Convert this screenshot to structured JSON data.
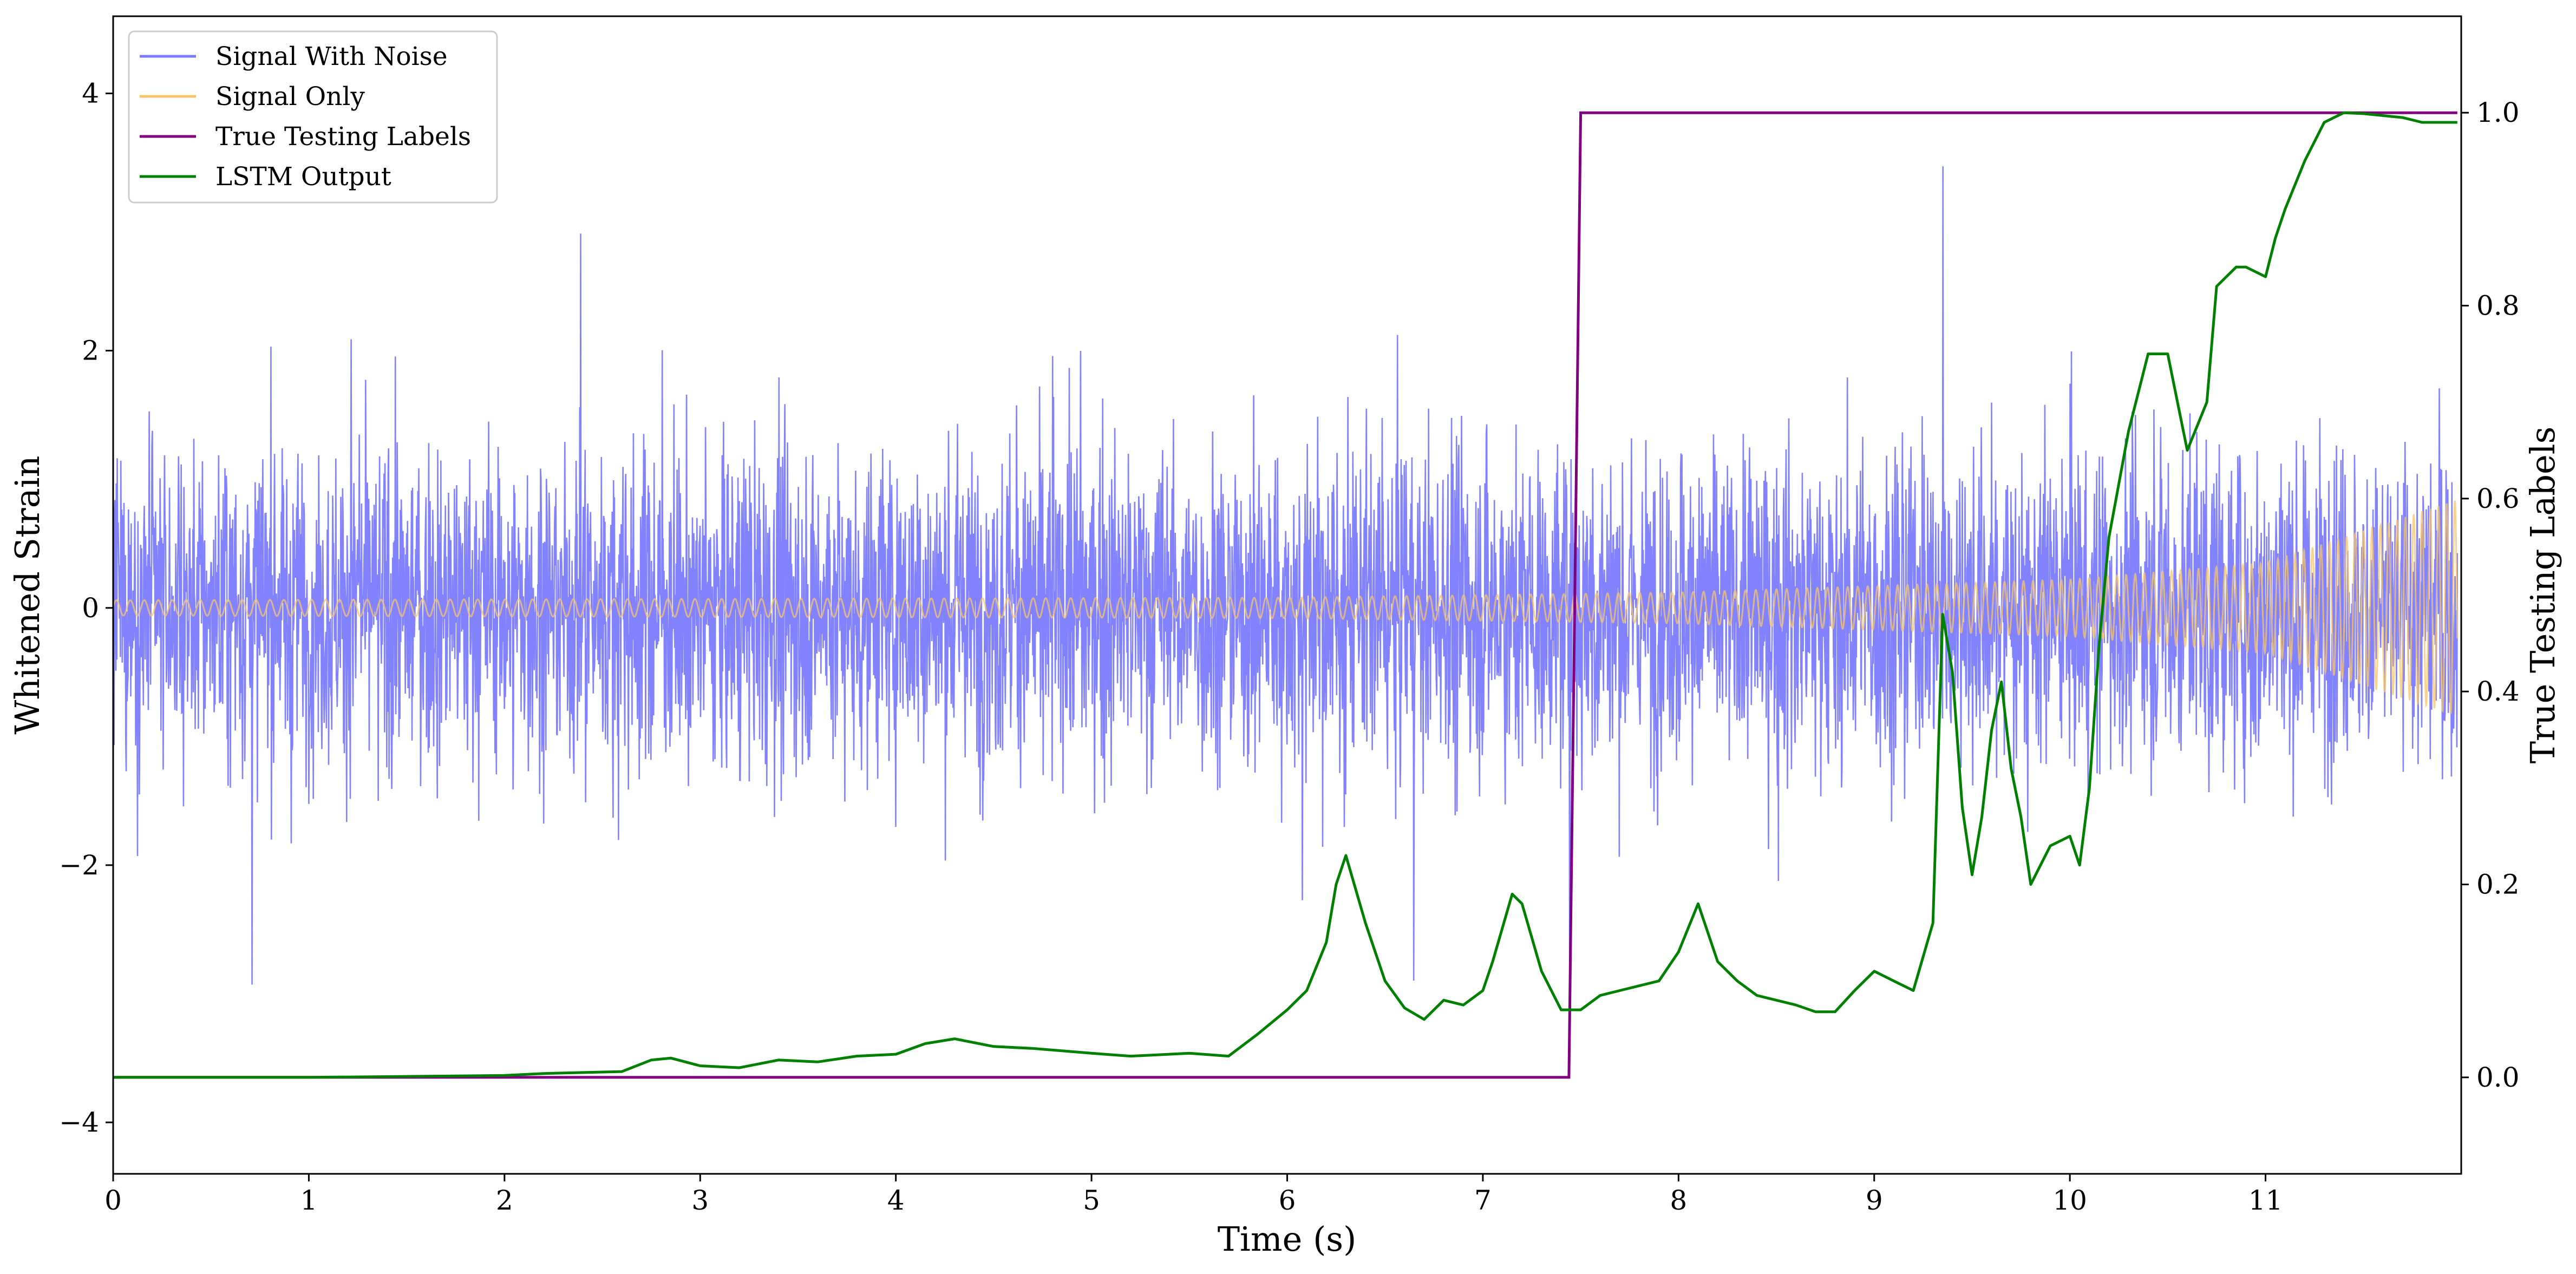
{
  "chart_data": {
    "type": "line",
    "xlabel": "Time (s)",
    "ylabel": "Whitened Strain",
    "ylabel_right": "True Testing Labels",
    "xlim": [
      0,
      12
    ],
    "ylim": [
      -4.4,
      4.6
    ],
    "ylim_right": [
      -0.1,
      1.1
    ],
    "x_ticks": [
      "0",
      "1",
      "2",
      "3",
      "4",
      "5",
      "6",
      "7",
      "8",
      "9",
      "10",
      "11"
    ],
    "y_ticks_left": [
      "−4",
      "−2",
      "0",
      "2",
      "4"
    ],
    "y_ticks_right": [
      "0.0",
      "0.2",
      "0.4",
      "0.6",
      "0.8",
      "1.0"
    ],
    "grid": false,
    "legend_position": "upper-left",
    "legend": [
      "Signal With Noise",
      "Signal Only",
      "True Testing Labels",
      "LSTM Output"
    ],
    "series": [
      {
        "name": "Signal With Noise",
        "axis": "left",
        "color": "#7b7bff",
        "description_values": "dense noise, approx. |y| ≤ 1.8 typical, spikes to ±3.5"
      },
      {
        "name": "Signal Only",
        "axis": "left",
        "color": "#f6c46a",
        "envelope": {
          "x": [
            0,
            6,
            8,
            10,
            11,
            12
          ],
          "amplitude": [
            0.06,
            0.08,
            0.12,
            0.22,
            0.35,
            0.85
          ]
        }
      },
      {
        "name": "True Testing Labels",
        "axis": "right",
        "color": "#800080",
        "x": [
          0,
          7.44,
          7.5,
          11.98
        ],
        "y": [
          0.0,
          0.0,
          1.0,
          1.0
        ]
      },
      {
        "name": "LSTM Output",
        "axis": "right",
        "color": "#008000",
        "x": [
          0,
          1.0,
          1.5,
          2.0,
          2.2,
          2.6,
          2.75,
          2.85,
          3.0,
          3.2,
          3.4,
          3.6,
          3.8,
          4.0,
          4.15,
          4.3,
          4.5,
          4.7,
          5.0,
          5.2,
          5.5,
          5.7,
          5.85,
          6.0,
          6.1,
          6.2,
          6.25,
          6.3,
          6.4,
          6.5,
          6.6,
          6.7,
          6.8,
          6.9,
          7.0,
          7.05,
          7.15,
          7.2,
          7.3,
          7.4,
          7.5,
          7.6,
          7.7,
          7.8,
          7.9,
          8.0,
          8.1,
          8.2,
          8.3,
          8.4,
          8.5,
          8.6,
          8.7,
          8.8,
          8.9,
          9.0,
          9.1,
          9.2,
          9.3,
          9.35,
          9.4,
          9.45,
          9.5,
          9.55,
          9.6,
          9.65,
          9.7,
          9.75,
          9.8,
          9.9,
          10.0,
          10.05,
          10.1,
          10.15,
          10.2,
          10.3,
          10.4,
          10.5,
          10.55,
          10.6,
          10.7,
          10.75,
          10.85,
          10.9,
          11.0,
          11.05,
          11.1,
          11.2,
          11.3,
          11.4,
          11.5,
          11.7,
          11.8,
          11.9,
          11.98
        ],
        "y": [
          0.0,
          0.0,
          0.001,
          0.002,
          0.004,
          0.006,
          0.018,
          0.02,
          0.012,
          0.01,
          0.018,
          0.016,
          0.022,
          0.024,
          0.035,
          0.04,
          0.032,
          0.03,
          0.025,
          0.022,
          0.025,
          0.022,
          0.045,
          0.07,
          0.09,
          0.14,
          0.2,
          0.23,
          0.16,
          0.1,
          0.072,
          0.06,
          0.08,
          0.075,
          0.09,
          0.12,
          0.19,
          0.18,
          0.11,
          0.07,
          0.07,
          0.085,
          0.09,
          0.095,
          0.1,
          0.13,
          0.18,
          0.12,
          0.1,
          0.085,
          0.08,
          0.075,
          0.068,
          0.068,
          0.09,
          0.11,
          0.1,
          0.09,
          0.16,
          0.48,
          0.42,
          0.28,
          0.21,
          0.27,
          0.36,
          0.41,
          0.32,
          0.27,
          0.2,
          0.24,
          0.25,
          0.22,
          0.3,
          0.45,
          0.56,
          0.67,
          0.75,
          0.75,
          0.7,
          0.65,
          0.7,
          0.82,
          0.84,
          0.84,
          0.83,
          0.87,
          0.9,
          0.95,
          0.99,
          1.0,
          0.999,
          0.995,
          0.99,
          0.99,
          0.99
        ]
      }
    ]
  }
}
